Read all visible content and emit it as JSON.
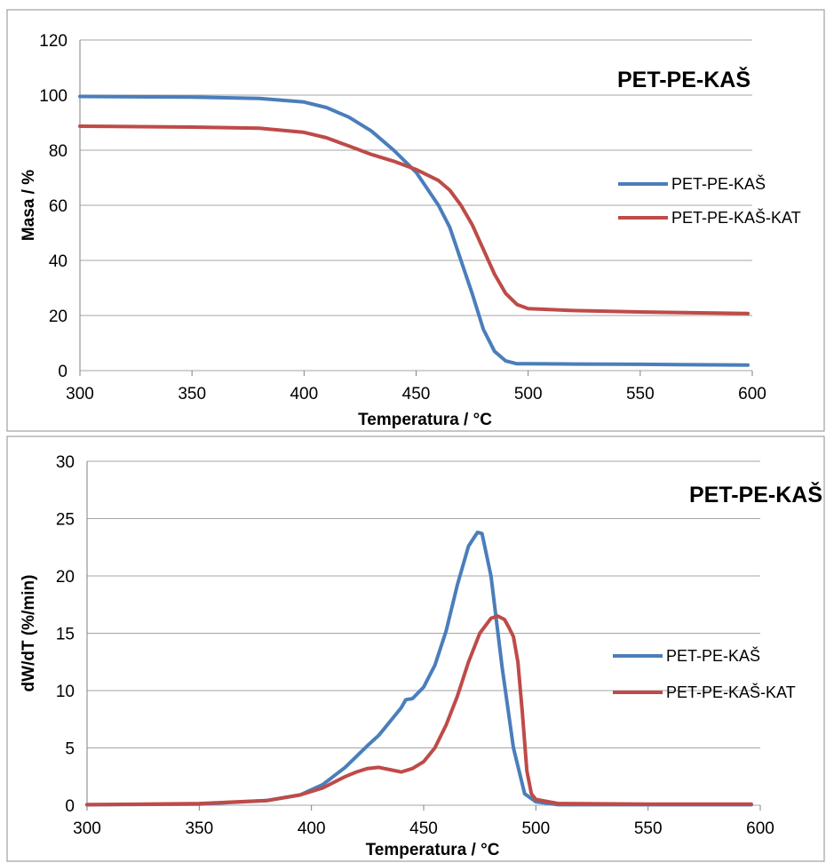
{
  "chart_data": [
    {
      "type": "line",
      "title": "PET-PE-KAŠ",
      "xlabel": "Temperatura / °C",
      "ylabel": "Masa / %",
      "xlim": [
        300,
        600
      ],
      "ylim": [
        0,
        120
      ],
      "xticks": [
        "300",
        "350",
        "400",
        "450",
        "500",
        "550",
        "600"
      ],
      "yticks": [
        "0",
        "20",
        "40",
        "60",
        "80",
        "100",
        "120"
      ],
      "grid": "horizontal",
      "legend_position": "right",
      "series": [
        {
          "name": "PET-PE-KAŠ",
          "color": "#4a7ebb",
          "x": [
            300,
            350,
            380,
            400,
            410,
            420,
            430,
            440,
            450,
            460,
            465,
            470,
            475,
            480,
            485,
            490,
            495,
            500,
            520,
            550,
            598
          ],
          "y": [
            99.5,
            99.3,
            98.8,
            97.5,
            95.5,
            92,
            87,
            80,
            72,
            60,
            52,
            40,
            28,
            15,
            7,
            3.5,
            2.5,
            2.5,
            2.4,
            2.3,
            2
          ]
        },
        {
          "name": "PET-PE-KAŠ-KAT",
          "color": "#be4b48",
          "x": [
            300,
            350,
            380,
            400,
            410,
            420,
            430,
            440,
            450,
            460,
            465,
            470,
            475,
            480,
            485,
            490,
            495,
            500,
            520,
            550,
            598
          ],
          "y": [
            88.7,
            88.4,
            88,
            86.5,
            84.5,
            81.5,
            78.5,
            76,
            73,
            69,
            65.5,
            60,
            53,
            44,
            35,
            28,
            24,
            22.5,
            21.8,
            21.3,
            20.7
          ]
        }
      ]
    },
    {
      "type": "line",
      "title": "PET-PE-KAŠ",
      "xlabel": "Temperatura / °C",
      "ylabel": "dW/dT (%/min)",
      "xlim": [
        300,
        600
      ],
      "ylim": [
        0,
        30
      ],
      "xticks": [
        "300",
        "350",
        "400",
        "450",
        "500",
        "550",
        "600"
      ],
      "yticks": [
        "0",
        "5",
        "10",
        "15",
        "20",
        "25",
        "30"
      ],
      "grid": "horizontal",
      "legend_position": "right",
      "series": [
        {
          "name": "PET-PE-KAŠ",
          "color": "#4a7ebb",
          "x": [
            300,
            350,
            380,
            395,
            405,
            415,
            425,
            430,
            440,
            442,
            445,
            450,
            455,
            460,
            465,
            470,
            474,
            476,
            480,
            485,
            490,
            495,
            500,
            510,
            550,
            596
          ],
          "y": [
            0.05,
            0.1,
            0.4,
            0.9,
            1.8,
            3.3,
            5.2,
            6.1,
            8.5,
            9.2,
            9.3,
            10.3,
            12.2,
            15.2,
            19.2,
            22.6,
            23.8,
            23.7,
            20,
            12,
            5,
            1,
            0.3,
            0.05,
            0.05,
            0.05
          ]
        },
        {
          "name": "PET-PE-KAŠ-KAT",
          "color": "#be4b48",
          "x": [
            300,
            350,
            380,
            395,
            405,
            415,
            420,
            425,
            430,
            435,
            440,
            445,
            450,
            455,
            460,
            465,
            470,
            475,
            480,
            483,
            486,
            488,
            490,
            492,
            494,
            496,
            498,
            500,
            510,
            550,
            596
          ],
          "y": [
            0.05,
            0.15,
            0.4,
            0.9,
            1.5,
            2.5,
            2.9,
            3.2,
            3.3,
            3.1,
            2.9,
            3.2,
            3.8,
            5.0,
            7.0,
            9.5,
            12.5,
            15.0,
            16.3,
            16.5,
            16.2,
            15.5,
            14.7,
            12.5,
            8.0,
            3.0,
            1.0,
            0.5,
            0.15,
            0.1,
            0.1
          ]
        }
      ]
    }
  ]
}
